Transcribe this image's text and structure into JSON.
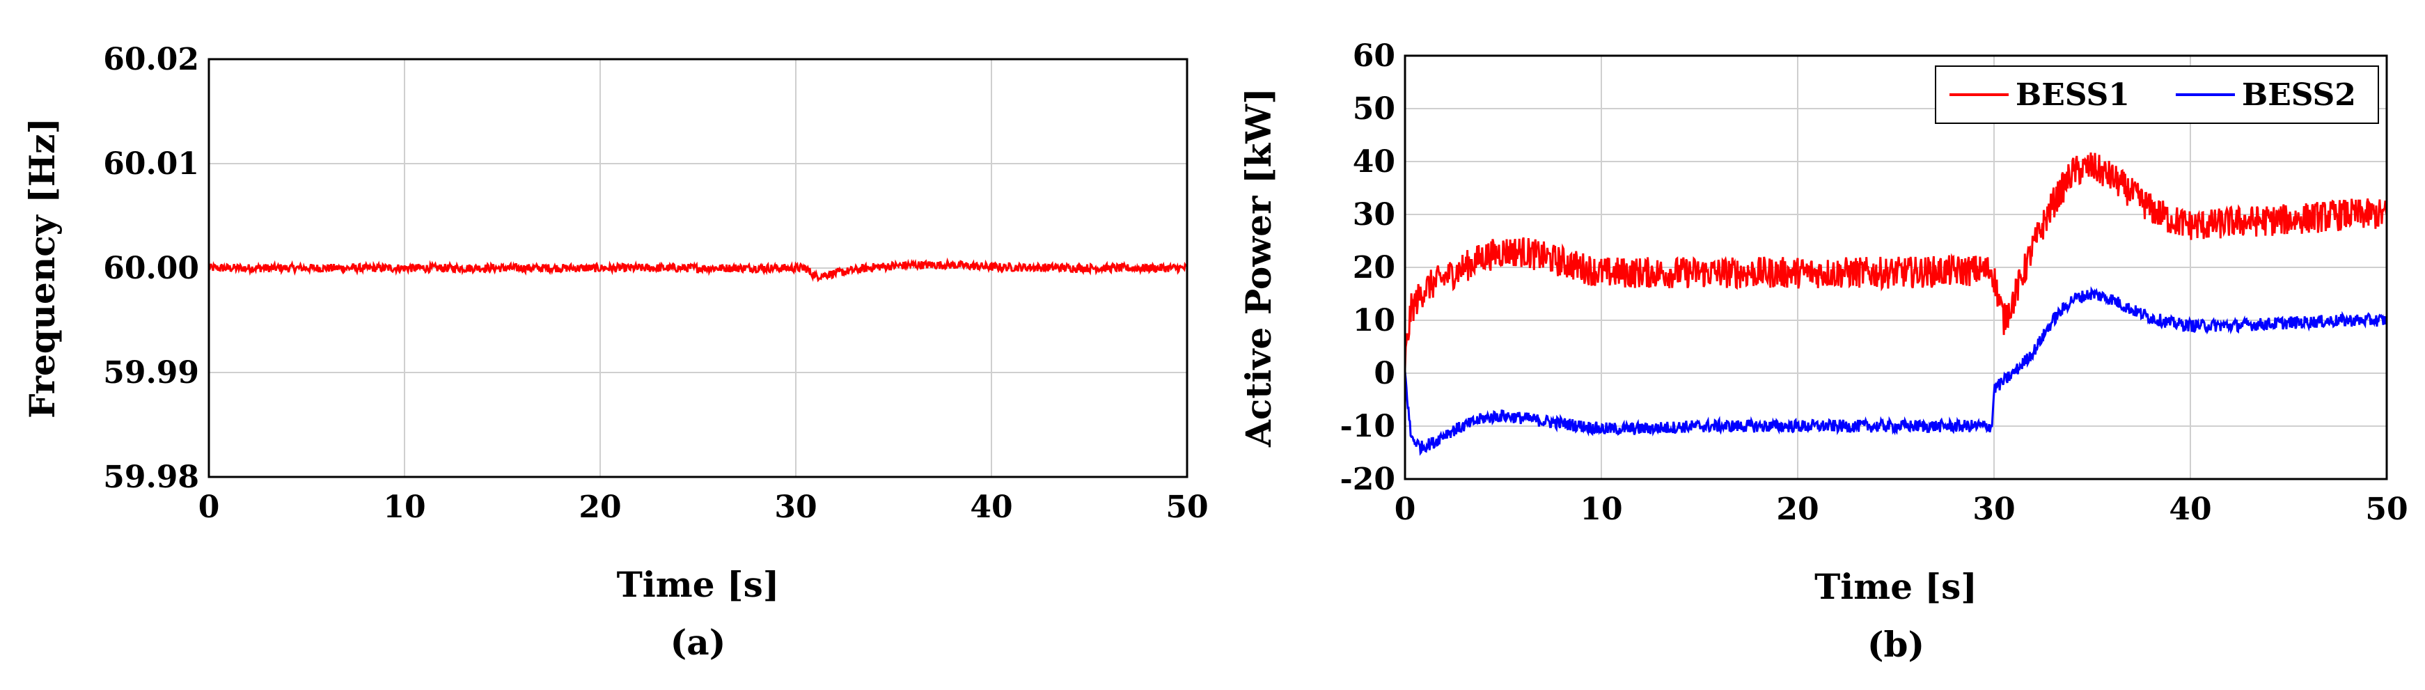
{
  "chart_data": [
    {
      "type": "line",
      "panel_label": "(a)",
      "xlabel": "Time [s]",
      "ylabel": "Frequency [Hz]",
      "xlim": [
        0,
        50
      ],
      "ylim": [
        59.98,
        60.02
      ],
      "xticks": [
        "0",
        "10",
        "20",
        "30",
        "40",
        "50"
      ],
      "yticks": [
        "59.98",
        "59.99",
        "60.00",
        "60.01",
        "60.02"
      ],
      "grid": true,
      "series": [
        {
          "name": "",
          "color": "#ff0000",
          "noise_band": 0.0004,
          "x": [
            0,
            5,
            10,
            15,
            20,
            25,
            30,
            30.5,
            31,
            32,
            34,
            36,
            38,
            40,
            45,
            50
          ],
          "y": [
            60.0,
            60.0,
            60.0,
            60.0,
            60.0,
            60.0,
            60.0,
            60.0,
            59.9992,
            59.9995,
            60.0001,
            60.0003,
            60.0003,
            60.0001,
            60.0,
            60.0
          ]
        }
      ]
    },
    {
      "type": "line",
      "panel_label": "(b)",
      "xlabel": "Time [s]",
      "ylabel": "Active Power [kW]",
      "xlim": [
        0,
        50
      ],
      "ylim": [
        -20,
        60
      ],
      "xticks": [
        "0",
        "10",
        "20",
        "30",
        "40",
        "50"
      ],
      "yticks": [
        "-20",
        "-10",
        "0",
        "10",
        "20",
        "30",
        "40",
        "50",
        "60"
      ],
      "grid": true,
      "legend": "top-right",
      "series": [
        {
          "name": "BESS1",
          "color": "#ff0000",
          "noise_band": 3,
          "x": [
            0,
            0.3,
            1,
            2,
            3,
            4,
            5,
            6,
            7,
            8,
            9,
            10,
            12,
            15,
            20,
            25,
            29.9,
            30,
            30.5,
            31,
            32,
            33,
            34,
            35,
            36,
            37,
            38,
            39,
            40,
            41,
            42,
            45,
            48,
            50
          ],
          "y": [
            2,
            12,
            16,
            18,
            20,
            22,
            23,
            23,
            22,
            21,
            20,
            19,
            19,
            19,
            19,
            19,
            19.5,
            18,
            10,
            14,
            24,
            32,
            38,
            39,
            37,
            34,
            31,
            29,
            28,
            28,
            28.5,
            29,
            30,
            30
          ]
        },
        {
          "name": "BESS2",
          "color": "#0000ff",
          "noise_band": 1.2,
          "x": [
            0,
            0.3,
            0.8,
            1.5,
            2,
            3,
            4,
            5,
            6,
            7,
            8,
            10,
            12,
            15,
            20,
            25,
            29.9,
            30,
            31,
            32,
            33,
            34,
            35,
            36,
            37,
            38,
            39,
            40,
            42,
            45,
            48,
            50
          ],
          "y": [
            0,
            -12,
            -14,
            -13,
            -11.5,
            -10,
            -8.5,
            -8,
            -8.5,
            -9,
            -9.5,
            -10.5,
            -10.5,
            -10,
            -10,
            -10,
            -10,
            -3,
            0,
            4,
            10,
            14,
            15,
            14,
            12,
            10.5,
            9.5,
            9,
            9,
            9.5,
            10,
            10
          ]
        }
      ]
    }
  ]
}
